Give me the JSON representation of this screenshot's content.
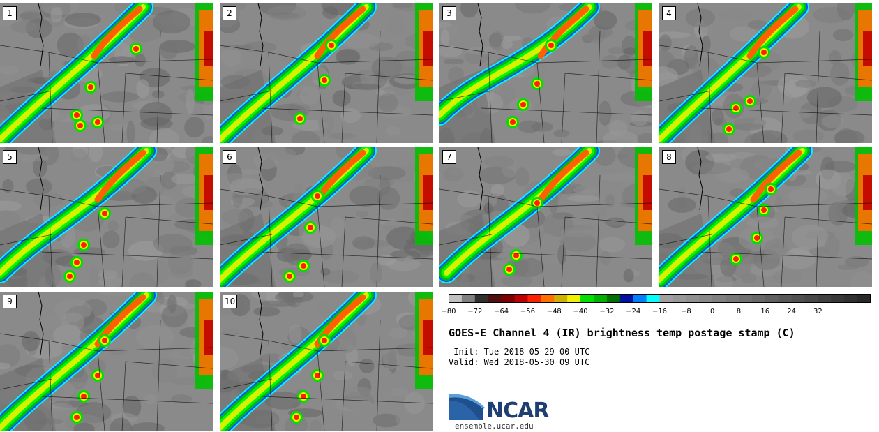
{
  "panels": [
    {
      "label": "1"
    },
    {
      "label": "2"
    },
    {
      "label": "3"
    },
    {
      "label": "4"
    },
    {
      "label": "5"
    },
    {
      "label": "6"
    },
    {
      "label": "7"
    },
    {
      "label": "8"
    },
    {
      "label": "9"
    },
    {
      "label": "10"
    }
  ],
  "colorbar": {
    "colors": [
      "#c0c0c0",
      "#808080",
      "#303030",
      "#501010",
      "#800000",
      "#c00000",
      "#ff2000",
      "#ff7000",
      "#d0b000",
      "#f0f000",
      "#00e000",
      "#00b000",
      "#007000",
      "#0010a0",
      "#0080ff",
      "#00ffff",
      "#a0a0a0",
      "#989898",
      "#909090",
      "#888888",
      "#808080",
      "#787878",
      "#707070",
      "#686868",
      "#606060",
      "#585858",
      "#505050",
      "#484848",
      "#404040",
      "#383838",
      "#303030",
      "#282828"
    ],
    "tick_labels": [
      "−80",
      "−72",
      "−64",
      "−56",
      "−48",
      "−40",
      "−32",
      "−24",
      "−16",
      "−8",
      "0",
      "8",
      "16",
      "24",
      "32"
    ]
  },
  "title": "GOES-E Channel 4 (IR) brightness temp postage stamp (C)",
  "init_line": " Init: Tue 2018-05-29 00 UTC",
  "valid_line": "Valid: Wed 2018-05-30 09 UTC",
  "logo_text": "NCAR",
  "url": "ensemble.ucar.edu"
}
